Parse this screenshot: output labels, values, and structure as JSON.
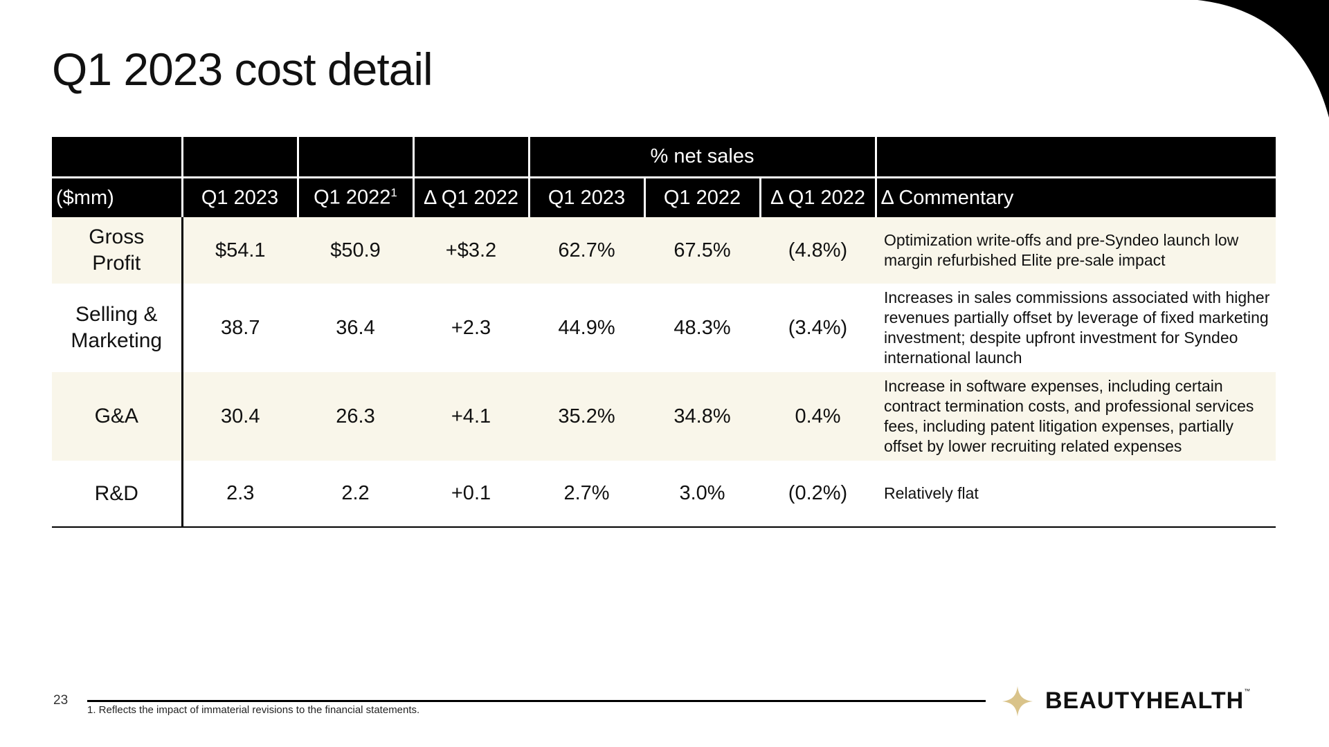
{
  "slide": {
    "title": "Q1 2023 cost detail",
    "page_number": "23",
    "footnote": "1. Reflects the impact of immaterial revisions to the financial statements.",
    "logo_text": "BEAUTYHEALTH",
    "logo_tm": "™",
    "accent_color": "#D9C38A"
  },
  "table": {
    "band_label": "% net sales",
    "headers": {
      "unit": "($mm)",
      "q1_2023": "Q1 2023",
      "q1_2022": "Q1 2022",
      "q1_2022_sup": "1",
      "delta_q1_2022": "Δ Q1 2022",
      "pct_q1_2023": "Q1 2023",
      "pct_q1_2022": "Q1 2022",
      "pct_delta_q1_2022": "Δ Q1 2022",
      "commentary": "Δ Commentary"
    },
    "rows": [
      {
        "label": "Gross Profit",
        "q1_2023": "$54.1",
        "q1_2022": "$50.9",
        "delta": "+$3.2",
        "pct_q1_2023": "62.7%",
        "pct_q1_2022": "67.5%",
        "pct_delta": "(4.8%)",
        "commentary": "Optimization write-offs and  pre-Syndeo launch low margin refurbished Elite pre-sale impact"
      },
      {
        "label": "Selling & Marketing",
        "q1_2023": "38.7",
        "q1_2022": "36.4",
        "delta": "+2.3",
        "pct_q1_2023": "44.9%",
        "pct_q1_2022": "48.3%",
        "pct_delta": "(3.4%)",
        "commentary": "Increases in sales commissions associated with higher revenues partially offset by leverage of fixed marketing investment; despite upfront investment for Syndeo international launch"
      },
      {
        "label": "G&A",
        "q1_2023": "30.4",
        "q1_2022": "26.3",
        "delta": "+4.1",
        "pct_q1_2023": "35.2%",
        "pct_q1_2022": "34.8%",
        "pct_delta": "0.4%",
        "commentary": "Increase in software expenses, including certain contract termination costs, and professional services fees, including patent litigation expenses, partially offset by lower recruiting related expenses"
      },
      {
        "label": "R&D",
        "q1_2023": "2.3",
        "q1_2022": "2.2",
        "delta": "+0.1",
        "pct_q1_2023": "2.7%",
        "pct_q1_2022": "3.0%",
        "pct_delta": "(0.2%)",
        "commentary": "Relatively flat"
      }
    ]
  }
}
